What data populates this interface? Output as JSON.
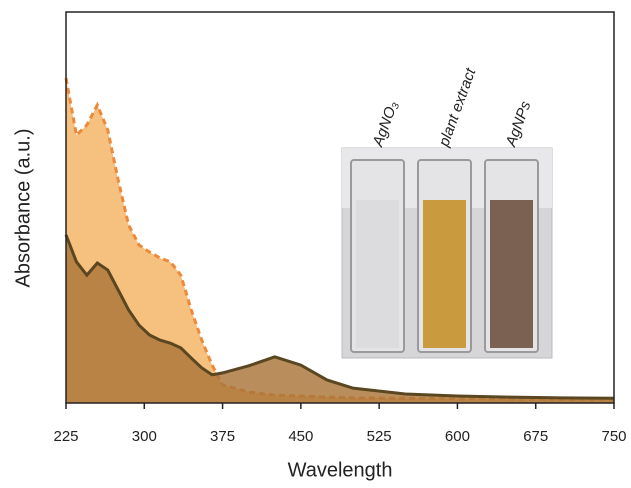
{
  "chart_data": {
    "type": "area",
    "x_label": "Wavelength",
    "y_label": "Absorbance (a.u.)",
    "x": [
      225,
      235,
      245,
      255,
      265,
      275,
      285,
      295,
      305,
      315,
      325,
      335,
      345,
      355,
      365,
      375,
      400,
      425,
      450,
      475,
      500,
      550,
      600,
      650,
      700,
      750
    ],
    "series": [
      {
        "color": "#ec8a3c",
        "fill": "#f6c07e",
        "line_style": "dashed",
        "values": [
          0.831,
          0.685,
          0.711,
          0.762,
          0.698,
          0.57,
          0.455,
          0.404,
          0.386,
          0.371,
          0.361,
          0.327,
          0.238,
          0.161,
          0.097,
          0.046,
          0.028,
          0.02,
          0.018,
          0.015,
          0.013,
          0.012,
          0.011,
          0.01,
          0.009,
          0.008
        ]
      },
      {
        "color": "#5a4620",
        "fill": "#a97538",
        "line_style": "solid",
        "values": [
          0.43,
          0.361,
          0.327,
          0.358,
          0.34,
          0.289,
          0.238,
          0.199,
          0.174,
          0.161,
          0.153,
          0.141,
          0.115,
          0.09,
          0.072,
          0.077,
          0.095,
          0.118,
          0.097,
          0.059,
          0.038,
          0.023,
          0.018,
          0.015,
          0.013,
          0.012
        ]
      }
    ],
    "xlim": [
      225,
      750
    ],
    "xticks": [
      225,
      300,
      375,
      450,
      525,
      600,
      675,
      750
    ],
    "ylim": [
      0,
      1
    ],
    "annotations": [
      "AgNO₃",
      "plant extract",
      "AgNPs"
    ]
  }
}
